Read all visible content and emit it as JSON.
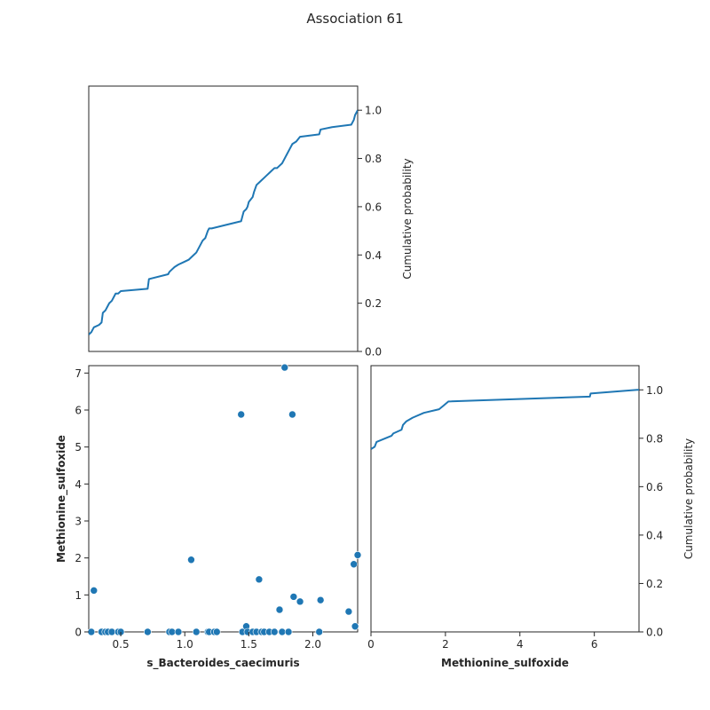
{
  "figure": {
    "title": "Association 61"
  },
  "chart_data": [
    {
      "panel": "top-left",
      "type": "line",
      "description_axis": "x shared with scatter (s_Bacteroides_caecimuris)",
      "xlim": [
        0.25,
        2.35
      ],
      "ylim": [
        0.0,
        1.1
      ],
      "ylabel": "Cumulative probability",
      "yticks": [
        0.0,
        0.2,
        0.4,
        0.6,
        0.8,
        1.0
      ],
      "ytick_labels": [
        "0.0",
        "0.2",
        "0.4",
        "0.6",
        "0.8",
        "1.0"
      ],
      "y_axis_side": "right",
      "color": "#1f77b4",
      "series": [
        {
          "x": [
            0.25,
            0.27,
            0.29,
            0.33,
            0.35,
            0.36,
            0.38,
            0.4,
            0.41,
            0.43,
            0.45,
            0.46,
            0.48,
            0.5,
            0.71,
            0.72,
            0.87,
            0.88,
            0.9,
            0.92,
            0.95,
            0.99,
            1.03,
            1.05,
            1.07,
            1.09,
            1.13,
            1.14,
            1.16,
            1.18,
            1.19,
            1.21,
            1.44,
            1.45,
            1.46,
            1.48,
            1.49,
            1.5,
            1.53,
            1.54,
            1.56,
            1.58,
            1.6,
            1.62,
            1.64,
            1.66,
            1.68,
            1.7,
            1.72,
            1.74,
            1.76,
            1.78,
            1.8,
            1.82,
            1.84,
            1.87,
            1.9,
            2.05,
            2.06,
            2.15,
            2.3,
            2.32,
            2.33,
            2.35
          ],
          "y": [
            0.07,
            0.08,
            0.1,
            0.11,
            0.12,
            0.16,
            0.17,
            0.19,
            0.2,
            0.21,
            0.23,
            0.24,
            0.24,
            0.25,
            0.26,
            0.3,
            0.32,
            0.33,
            0.34,
            0.35,
            0.36,
            0.37,
            0.38,
            0.39,
            0.4,
            0.41,
            0.45,
            0.46,
            0.47,
            0.5,
            0.51,
            0.51,
            0.54,
            0.56,
            0.58,
            0.59,
            0.6,
            0.62,
            0.64,
            0.66,
            0.69,
            0.7,
            0.71,
            0.72,
            0.73,
            0.74,
            0.75,
            0.76,
            0.76,
            0.77,
            0.78,
            0.8,
            0.82,
            0.84,
            0.86,
            0.87,
            0.89,
            0.9,
            0.92,
            0.93,
            0.94,
            0.96,
            0.98,
            1.0
          ]
        }
      ]
    },
    {
      "panel": "bottom-left",
      "type": "scatter",
      "xlabel": "s_Bacteroides_caecimuris",
      "ylabel": "Methionine_sulfoxide",
      "xlim": [
        0.25,
        2.35
      ],
      "ylim": [
        0.0,
        7.2
      ],
      "xticks": [
        0.5,
        1.0,
        1.5,
        2.0
      ],
      "xtick_labels": [
        "0.5",
        "1.0",
        "1.5",
        "2.0"
      ],
      "yticks": [
        0,
        1,
        2,
        3,
        4,
        5,
        6,
        7
      ],
      "ytick_labels": [
        "0",
        "1",
        "2",
        "3",
        "4",
        "5",
        "6",
        "7"
      ],
      "color": "#1f77b4",
      "points": [
        [
          0.27,
          0.0
        ],
        [
          0.29,
          1.12
        ],
        [
          0.35,
          0.0
        ],
        [
          0.38,
          0.0
        ],
        [
          0.4,
          0.0
        ],
        [
          0.43,
          0.0
        ],
        [
          0.48,
          0.0
        ],
        [
          0.5,
          0.0
        ],
        [
          0.71,
          0.0
        ],
        [
          0.88,
          0.0
        ],
        [
          0.9,
          0.0
        ],
        [
          0.95,
          0.0
        ],
        [
          1.05,
          1.95
        ],
        [
          1.09,
          0.0
        ],
        [
          1.18,
          0.0
        ],
        [
          1.19,
          0.0
        ],
        [
          1.23,
          0.0
        ],
        [
          1.25,
          0.0
        ],
        [
          1.44,
          5.88
        ],
        [
          1.45,
          0.0
        ],
        [
          1.48,
          0.15
        ],
        [
          1.49,
          0.0
        ],
        [
          1.53,
          0.0
        ],
        [
          1.56,
          0.0
        ],
        [
          1.58,
          1.42
        ],
        [
          1.6,
          0.0
        ],
        [
          1.62,
          0.0
        ],
        [
          1.66,
          0.0
        ],
        [
          1.7,
          0.0
        ],
        [
          1.74,
          0.6
        ],
        [
          1.76,
          0.0
        ],
        [
          1.78,
          7.15
        ],
        [
          1.81,
          0.0
        ],
        [
          1.84,
          5.88
        ],
        [
          1.85,
          0.95
        ],
        [
          1.9,
          0.82
        ],
        [
          2.05,
          0.0
        ],
        [
          2.06,
          0.86
        ],
        [
          2.28,
          0.55
        ],
        [
          2.32,
          1.83
        ],
        [
          2.33,
          0.15
        ],
        [
          2.35,
          2.08
        ]
      ]
    },
    {
      "panel": "bottom-right",
      "type": "line",
      "xlabel": "Methionine_sulfoxide",
      "ylabel": "Cumulative probability",
      "xlim": [
        0.0,
        7.2
      ],
      "ylim": [
        0.0,
        1.1
      ],
      "xticks": [
        0,
        2,
        4,
        6
      ],
      "xtick_labels": [
        "0",
        "2",
        "4",
        "6"
      ],
      "yticks": [
        0.0,
        0.2,
        0.4,
        0.6,
        0.8,
        1.0
      ],
      "ytick_labels": [
        "0.0",
        "0.2",
        "0.4",
        "0.6",
        "0.8",
        "1.0"
      ],
      "y_axis_side": "right",
      "color": "#1f77b4",
      "series": [
        {
          "x": [
            0.0,
            0.1,
            0.15,
            0.55,
            0.6,
            0.82,
            0.86,
            0.95,
            1.12,
            1.42,
            1.83,
            1.95,
            2.08,
            5.88,
            5.9,
            7.15,
            7.2
          ],
          "y": [
            0.755,
            0.765,
            0.785,
            0.81,
            0.82,
            0.835,
            0.855,
            0.87,
            0.885,
            0.905,
            0.92,
            0.935,
            0.952,
            0.972,
            0.985,
            1.0,
            1.0
          ]
        }
      ]
    }
  ]
}
